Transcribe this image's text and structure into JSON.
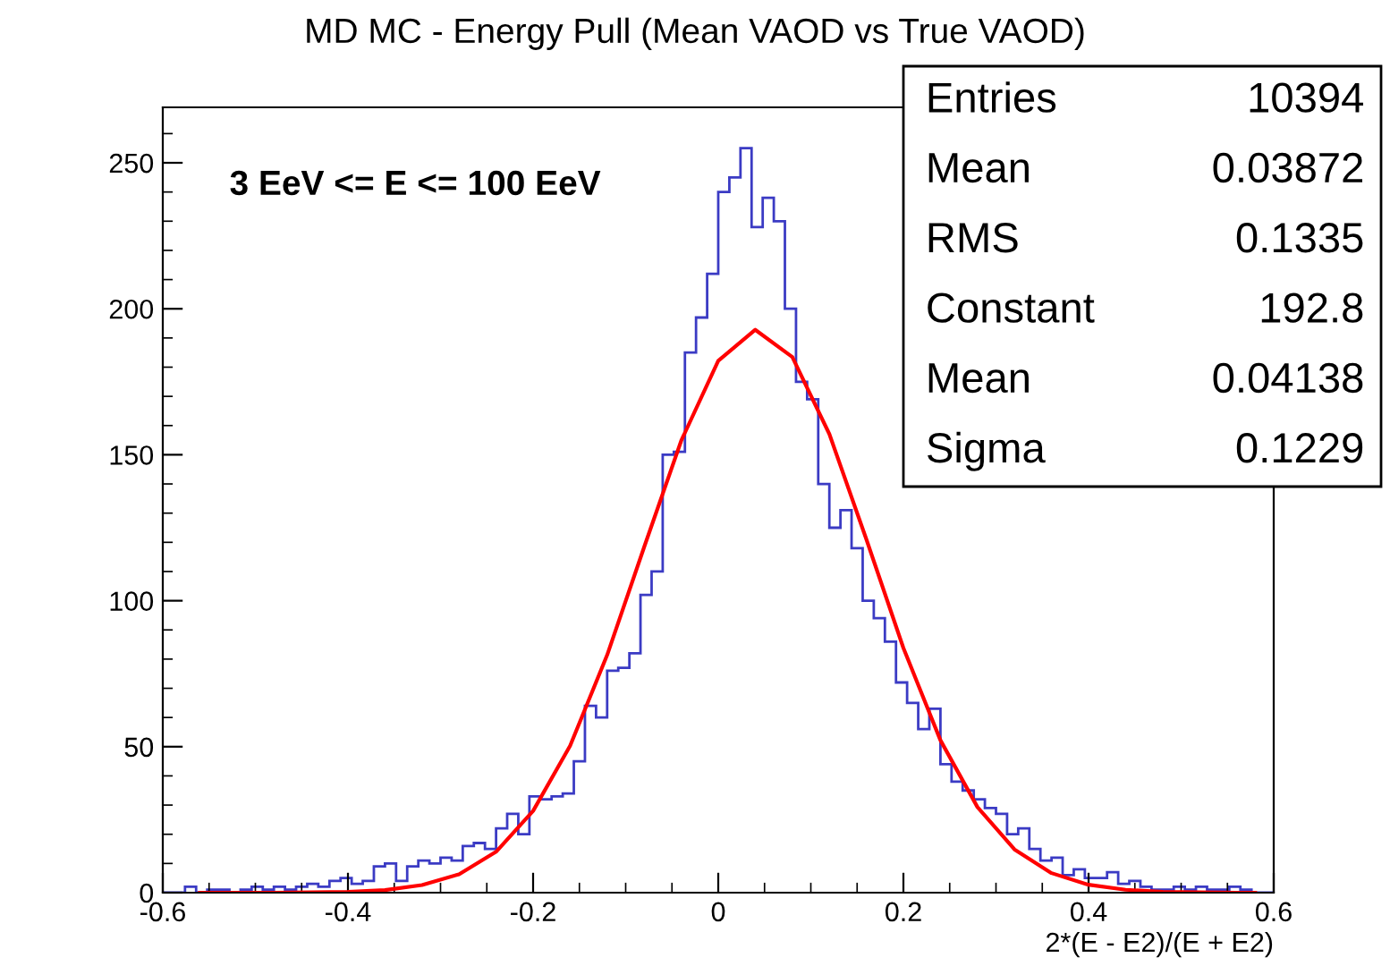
{
  "chart_data": {
    "type": "histogram",
    "title": "MD MC - Energy Pull (Mean VAOD vs True VAOD)",
    "xlabel": "2*(E - E2)/(E + E2)",
    "annotations": [
      "3 EeV <= E <= 100 EeV",
      "Entries",
      "10394",
      "Mean",
      "0.03872",
      "RMS",
      "0.1335",
      "Constant",
      "192.8",
      "Mean",
      "0.04138",
      "Sigma",
      "0.1229"
    ],
    "xlim": [
      -0.6,
      0.6
    ],
    "xticks": [
      -0.6,
      -0.4,
      -0.2,
      0,
      0.2,
      0.4,
      0.6
    ],
    "ylim": [
      0,
      269
    ],
    "yticks": [
      0,
      50,
      100,
      150,
      200,
      250
    ],
    "grid": false,
    "legend": false,
    "series": [
      {
        "type": "histogram",
        "color": "#3b3bc4",
        "bins": [
          -0.6,
          -0.588,
          -0.576,
          -0.564,
          -0.552,
          -0.54,
          -0.528,
          -0.516,
          -0.504,
          -0.492,
          -0.48,
          -0.468,
          -0.456,
          -0.444,
          -0.432,
          -0.42,
          -0.408,
          -0.396,
          -0.384,
          -0.372,
          -0.36,
          -0.348,
          -0.336,
          -0.324,
          -0.312,
          -0.3,
          -0.288,
          -0.276,
          -0.264,
          -0.252,
          -0.24,
          -0.228,
          -0.216,
          -0.204,
          -0.192,
          -0.18,
          -0.168,
          -0.156,
          -0.144,
          -0.132,
          -0.12,
          -0.108,
          -0.096,
          -0.084,
          -0.072,
          -0.06,
          -0.048,
          -0.036,
          -0.024,
          -0.012,
          0.0,
          0.012,
          0.024,
          0.036,
          0.048,
          0.06,
          0.072,
          0.084,
          0.096,
          0.108,
          0.12,
          0.132,
          0.144,
          0.156,
          0.168,
          0.18,
          0.192,
          0.204,
          0.216,
          0.228,
          0.24,
          0.252,
          0.264,
          0.276,
          0.288,
          0.3,
          0.312,
          0.324,
          0.336,
          0.348,
          0.36,
          0.372,
          0.384,
          0.396,
          0.408,
          0.42,
          0.432,
          0.444,
          0.456,
          0.468,
          0.48,
          0.492,
          0.504,
          0.516,
          0.528,
          0.54,
          0.552,
          0.564,
          0.576,
          0.588,
          0.6
        ],
        "values": [
          0,
          0,
          2,
          0,
          1,
          1,
          0,
          1,
          2,
          1,
          2,
          1,
          2,
          3,
          2,
          4,
          5,
          3,
          4,
          9,
          10,
          4,
          9,
          11,
          10,
          12,
          11,
          16,
          17,
          15,
          22,
          27,
          20,
          33,
          32,
          33,
          34,
          45,
          64,
          60,
          76,
          77,
          82,
          102,
          110,
          150,
          151,
          185,
          197,
          212,
          240,
          245,
          255,
          228,
          238,
          230,
          200,
          175,
          169,
          140,
          125,
          131,
          118,
          100,
          94,
          86,
          72,
          65,
          56,
          63,
          44,
          38,
          35,
          32,
          29,
          27,
          20,
          22,
          15,
          11,
          12,
          6,
          8,
          5,
          5,
          7,
          3,
          4,
          2,
          1,
          1,
          2,
          1,
          2,
          1,
          1,
          2,
          1,
          0,
          0
        ]
      },
      {
        "type": "line",
        "color": "#ff0000",
        "x": [
          -0.56,
          -0.52,
          -0.48,
          -0.44,
          -0.4,
          -0.36,
          -0.32,
          -0.28,
          -0.24,
          -0.2,
          -0.16,
          -0.12,
          -0.08,
          -0.04,
          0.0,
          0.04,
          0.08,
          0.12,
          0.16,
          0.2,
          0.24,
          0.28,
          0.32,
          0.36,
          0.4,
          0.44,
          0.48,
          0.52,
          0.56,
          0.58
        ],
        "values": [
          0.0,
          0.0,
          0.0,
          0.1,
          0.3,
          0.9,
          2.6,
          6.3,
          14.0,
          28.0,
          50.3,
          81.4,
          118.4,
          154.8,
          182.2,
          192.8,
          183.5,
          157.1,
          121.0,
          83.8,
          52.2,
          29.3,
          14.8,
          6.7,
          2.7,
          1.0,
          0.3,
          0.1,
          0.0,
          0.0
        ]
      }
    ]
  }
}
